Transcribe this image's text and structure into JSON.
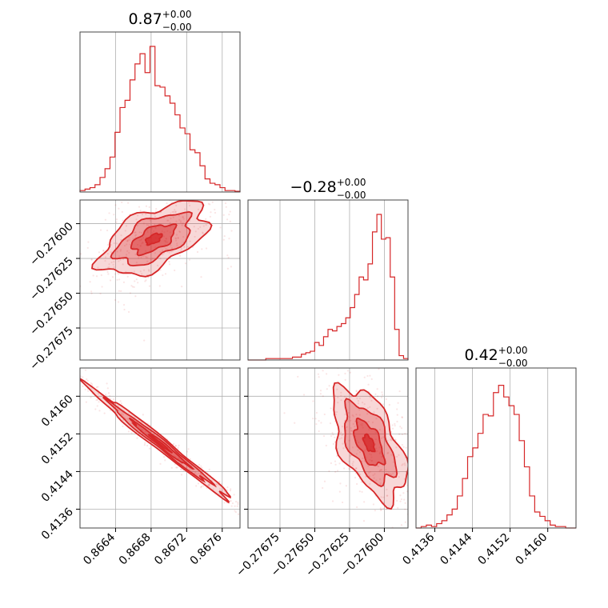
{
  "accent_color": "#d62728",
  "chart_data": {
    "type": "corner",
    "grid": true,
    "parameters": [
      {
        "title_main": "0.87",
        "title_plus": "+0.00",
        "title_minus": "−0.00",
        "range": [
          0.866,
          0.8678
        ],
        "ticks": [
          0.8664,
          0.8668,
          0.8672,
          0.8676
        ],
        "tick_labels": [
          "0.8664",
          "0.8668",
          "0.8672",
          "0.8676"
        ],
        "hist": [
          0.01,
          0.02,
          0.03,
          0.05,
          0.1,
          0.16,
          0.24,
          0.41,
          0.58,
          0.63,
          0.77,
          0.88,
          0.95,
          0.82,
          1.0,
          0.73,
          0.72,
          0.66,
          0.61,
          0.53,
          0.44,
          0.4,
          0.29,
          0.27,
          0.18,
          0.09,
          0.06,
          0.05,
          0.03,
          0.01,
          0.01,
          0.005
        ]
      },
      {
        "title_main": "−0.28",
        "title_plus": "+0.00",
        "title_minus": "−0.00",
        "range": [
          -0.27698,
          -0.27583
        ],
        "ticks": [
          -0.27675,
          -0.2765,
          -0.27625,
          -0.276
        ],
        "tick_labels": [
          "−0.27675",
          "−0.27650",
          "−0.27625",
          "−0.27600"
        ],
        "hist": [
          0.0,
          0.0,
          0.0,
          0.0,
          0.01,
          0.01,
          0.01,
          0.01,
          0.01,
          0.01,
          0.02,
          0.02,
          0.04,
          0.05,
          0.06,
          0.12,
          0.1,
          0.16,
          0.21,
          0.2,
          0.23,
          0.25,
          0.29,
          0.36,
          0.45,
          0.57,
          0.55,
          0.66,
          0.88,
          1.0,
          0.83,
          0.84,
          0.57,
          0.21,
          0.03,
          0.01
        ]
      },
      {
        "title_main": "0.42",
        "title_plus": "+0.00",
        "title_minus": "−0.00",
        "range": [
          0.4132,
          0.4166
        ],
        "ticks": [
          0.4136,
          0.4144,
          0.4152,
          0.416
        ],
        "tick_labels": [
          "0.4136",
          "0.4144",
          "0.4152",
          "0.4160"
        ],
        "hist": [
          0.0,
          0.01,
          0.02,
          0.01,
          0.03,
          0.05,
          0.09,
          0.13,
          0.22,
          0.34,
          0.49,
          0.55,
          0.65,
          0.78,
          0.77,
          0.93,
          0.98,
          0.9,
          0.84,
          0.78,
          0.6,
          0.42,
          0.22,
          0.11,
          0.08,
          0.05,
          0.02,
          0.01,
          0.01,
          0.0,
          0.0
        ]
      }
    ],
    "pairs": [
      {
        "x_param": 0,
        "y_param": 1,
        "center": [
          0.86683,
          -0.27611
        ],
        "sd": [
          0.0003,
          0.00013
        ],
        "corr": 0.55
      },
      {
        "x_param": 0,
        "y_param": 2,
        "center": [
          0.8669,
          0.415
        ],
        "sd": [
          0.0004,
          0.0006
        ],
        "corr": -0.99
      },
      {
        "x_param": 1,
        "y_param": 2,
        "center": [
          -0.27611,
          0.415
        ],
        "sd": [
          0.00013,
          0.0006
        ],
        "corr": -0.55
      }
    ]
  }
}
